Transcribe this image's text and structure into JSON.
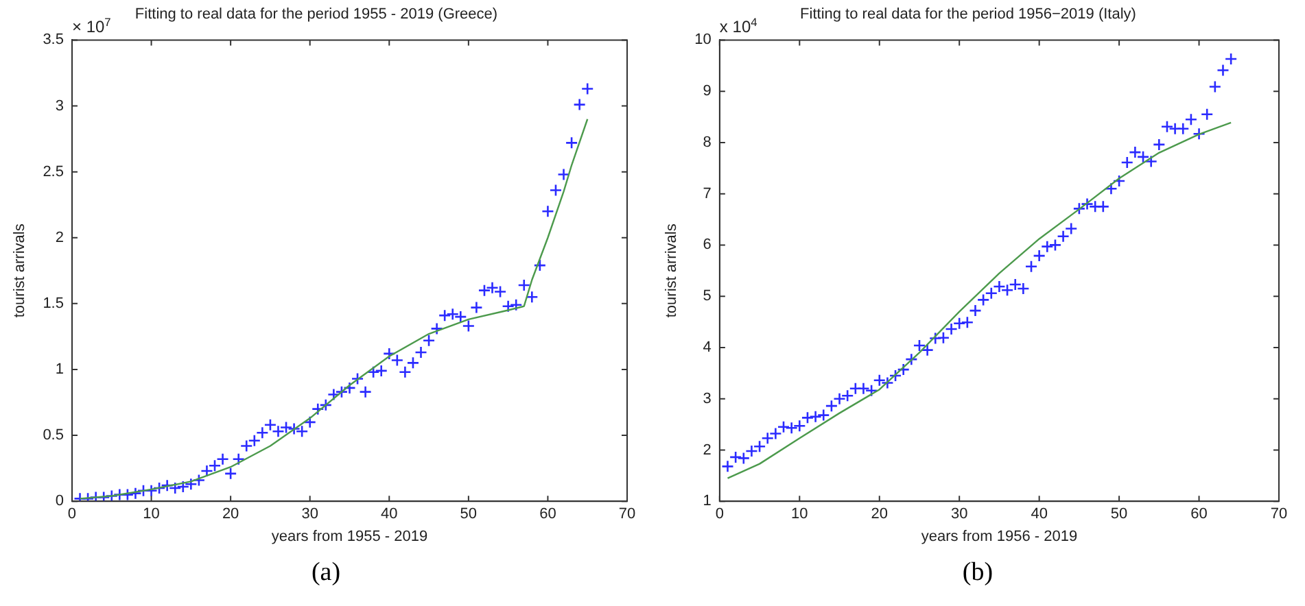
{
  "chart_data": [
    {
      "type": "scatter",
      "title": "Fitting to real data for the period 1955 - 2019 (Greece)",
      "xlabel": "years from 1955 - 2019",
      "ylabel": "tourist arrivals",
      "annotations": [
        "× 10$^{7}$",
        "(a)"
      ],
      "xlim": [
        0,
        70
      ],
      "xticks": [
        0,
        10,
        20,
        30,
        40,
        50,
        60,
        70
      ],
      "ylim": [
        0,
        3.5
      ],
      "yticks": [
        0,
        0.5,
        1,
        1.5,
        2,
        2.5,
        3,
        3.5
      ],
      "grid": false,
      "legend": false,
      "series": [
        {
          "type": "scatter",
          "color": "#2b2bff",
          "marker": "cross",
          "x": [
            1,
            2,
            3,
            4,
            5,
            6,
            7,
            8,
            9,
            10,
            11,
            12,
            13,
            14,
            15,
            16,
            17,
            18,
            19,
            20,
            21,
            22,
            23,
            24,
            25,
            26,
            27,
            28,
            29,
            30,
            31,
            32,
            33,
            34,
            35,
            36,
            37,
            38,
            39,
            40,
            41,
            42,
            43,
            44,
            45,
            46,
            47,
            48,
            49,
            50,
            51,
            52,
            53,
            54,
            55,
            56,
            57,
            58,
            59,
            60,
            61,
            62,
            63,
            64,
            65
          ],
          "values": [
            0.02,
            0.02,
            0.03,
            0.03,
            0.04,
            0.05,
            0.05,
            0.06,
            0.08,
            0.08,
            0.1,
            0.12,
            0.1,
            0.11,
            0.13,
            0.16,
            0.23,
            0.27,
            0.32,
            0.21,
            0.32,
            0.42,
            0.46,
            0.52,
            0.58,
            0.53,
            0.56,
            0.55,
            0.53,
            0.6,
            0.7,
            0.73,
            0.81,
            0.83,
            0.86,
            0.93,
            0.83,
            0.98,
            0.99,
            1.12,
            1.07,
            0.98,
            1.05,
            1.13,
            1.22,
            1.31,
            1.41,
            1.42,
            1.4,
            1.33,
            1.47,
            1.6,
            1.62,
            1.59,
            1.48,
            1.49,
            1.64,
            1.55,
            1.79,
            2.2,
            2.36,
            2.48,
            2.72,
            3.01,
            3.13
          ]
        },
        {
          "type": "line",
          "color": "#4c9a4c",
          "marker": "none",
          "x": [
            1,
            5,
            10,
            15,
            20,
            25,
            30,
            35,
            40,
            45,
            50,
            55,
            57,
            58,
            60,
            62,
            63,
            65
          ],
          "values": [
            0.02,
            0.04,
            0.09,
            0.15,
            0.26,
            0.42,
            0.63,
            0.88,
            1.1,
            1.27,
            1.38,
            1.45,
            1.48,
            1.68,
            2.0,
            2.35,
            2.55,
            2.9
          ]
        }
      ]
    },
    {
      "type": "scatter",
      "title": "Fitting to real data for the period 1956−2019 (Italy)",
      "xlabel": "years from 1956 - 2019",
      "ylabel": "tourist arrivals",
      "annotations": [
        "x 10$^{4}$",
        "(b)"
      ],
      "xlim": [
        0,
        70
      ],
      "xticks": [
        0,
        10,
        20,
        30,
        40,
        50,
        60,
        70
      ],
      "ylim": [
        1,
        10
      ],
      "yticks": [
        1,
        2,
        3,
        4,
        5,
        6,
        7,
        8,
        9,
        10
      ],
      "grid": false,
      "legend": false,
      "series": [
        {
          "type": "scatter",
          "color": "#2b2bff",
          "marker": "cross",
          "x": [
            1,
            2,
            3,
            4,
            5,
            6,
            7,
            8,
            9,
            10,
            11,
            12,
            13,
            14,
            15,
            16,
            17,
            18,
            19,
            20,
            21,
            22,
            23,
            24,
            25,
            26,
            27,
            28,
            29,
            30,
            31,
            32,
            33,
            34,
            35,
            36,
            37,
            38,
            39,
            40,
            41,
            42,
            43,
            44,
            45,
            46,
            47,
            48,
            49,
            50,
            51,
            52,
            53,
            54,
            55,
            56,
            57,
            58,
            59,
            60,
            61,
            62,
            63,
            64
          ],
          "values": [
            1.68,
            1.86,
            1.84,
            1.98,
            2.07,
            2.23,
            2.32,
            2.45,
            2.43,
            2.47,
            2.63,
            2.65,
            2.68,
            2.86,
            3.0,
            3.06,
            3.2,
            3.2,
            3.16,
            3.36,
            3.31,
            3.45,
            3.57,
            3.77,
            4.04,
            3.95,
            4.18,
            4.19,
            4.36,
            4.47,
            4.49,
            4.72,
            4.93,
            5.06,
            5.19,
            5.12,
            5.23,
            5.15,
            5.58,
            5.79,
            5.97,
            6.0,
            6.17,
            6.32,
            6.71,
            6.8,
            6.75,
            6.75,
            7.1,
            7.25,
            7.61,
            7.81,
            7.72,
            7.63,
            7.96,
            8.31,
            8.27,
            8.27,
            8.45,
            8.17,
            8.55,
            9.09,
            9.41,
            9.63
          ]
        },
        {
          "type": "line",
          "color": "#4c9a4c",
          "marker": "none",
          "x": [
            1,
            5,
            10,
            15,
            20,
            25,
            30,
            35,
            40,
            45,
            50,
            55,
            60,
            64
          ],
          "values": [
            1.45,
            1.73,
            2.23,
            2.72,
            3.18,
            3.9,
            4.7,
            5.45,
            6.12,
            6.7,
            7.3,
            7.8,
            8.16,
            8.39
          ]
        }
      ]
    }
  ]
}
